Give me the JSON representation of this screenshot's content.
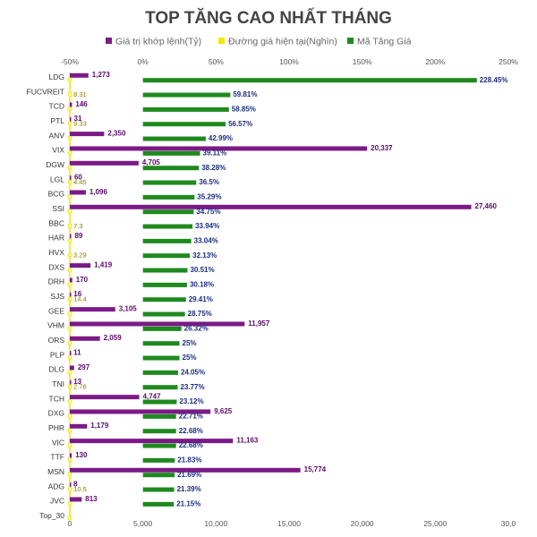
{
  "chart_data": {
    "type": "bar",
    "title": "TOP TĂNG CAO NHẤT THÁNG",
    "legend": {
      "position": "top",
      "entries": [
        {
          "name": "Giá trị khớp lệnh(Tỷ)",
          "color": "#7b1a86"
        },
        {
          "name": "Đường giá hiện tại(Nghìn)",
          "color": "#f2e600"
        },
        {
          "name": "Mã Tăng Giá",
          "color": "#1e8a1e"
        }
      ]
    },
    "categories": [
      "LDG",
      "FUCVREIT",
      "TCD",
      "PTL",
      "ANV",
      "VIX",
      "DGW",
      "LGL",
      "BCG",
      "SSI",
      "BBC",
      "HAR",
      "HVX",
      "DXS",
      "DRH",
      "SJS",
      "GEE",
      "VHM",
      "ORS",
      "PLP",
      "DLG",
      "TNI",
      "TCH",
      "DXG",
      "PHR",
      "VIC",
      "TTF",
      "MSN",
      "ADG",
      "JVC",
      "Top_30"
    ],
    "series": [
      {
        "name": "Mã Tăng Giá",
        "axis": "top",
        "unit": "%",
        "labels": [
          "228.45%",
          "59.81%",
          "58.85%",
          "56.57%",
          "42.99%",
          "39.11%",
          "38.28%",
          "36.5%",
          "35.29%",
          "34.75%",
          "33.94%",
          "33.04%",
          "32.13%",
          "30.51%",
          "30.18%",
          "29.41%",
          "28.75%",
          "26.32%",
          "25%",
          "25%",
          "24.05%",
          "23.77%",
          "23.12%",
          "22.71%",
          "22.68%",
          "22.68%",
          "21.83%",
          "21.69%",
          "21.39%",
          "21.15%",
          ""
        ],
        "values": [
          228.45,
          59.81,
          58.85,
          56.57,
          42.99,
          39.11,
          38.28,
          36.5,
          35.29,
          34.75,
          33.94,
          33.04,
          32.13,
          30.51,
          30.18,
          29.41,
          28.75,
          26.32,
          25,
          25,
          24.05,
          23.77,
          23.12,
          22.71,
          22.68,
          22.68,
          21.83,
          21.69,
          21.39,
          21.15,
          null
        ]
      },
      {
        "name": "Giá trị khớp lệnh(Tỷ)",
        "axis": "bottom",
        "labels": [
          "1,273",
          "",
          "146",
          "31",
          "2,350",
          "20,337",
          "4,705",
          "60",
          "1,096",
          "27,460",
          "",
          "89",
          "",
          "1,419",
          "170",
          "16",
          "3,105",
          "11,957",
          "2,059",
          "11",
          "297",
          "13",
          "4,747",
          "9,625",
          "1,179",
          "11,163",
          "130",
          "15,774",
          "8",
          "813",
          ""
        ],
        "values": [
          1273,
          null,
          146,
          31,
          2350,
          20337,
          4705,
          60,
          1096,
          27460,
          null,
          89,
          null,
          1419,
          170,
          16,
          3105,
          11957,
          2059,
          11,
          297,
          13,
          4747,
          9625,
          1179,
          11163,
          130,
          15774,
          8,
          813,
          null
        ]
      },
      {
        "name": "Đường giá hiện tại(Nghìn)",
        "axis": "bottom",
        "labels": [
          "",
          "8.31",
          "",
          "9.33",
          "",
          "",
          "",
          "4.45",
          "",
          "",
          "7.3",
          "",
          "3.29",
          "",
          "",
          "14.4",
          "",
          "",
          "",
          "",
          "",
          "2.76",
          "",
          "",
          "",
          "",
          "",
          "",
          "10.5",
          "",
          ""
        ],
        "values": [
          null,
          8.31,
          null,
          9.33,
          null,
          null,
          null,
          4.45,
          null,
          null,
          7.3,
          null,
          3.29,
          null,
          null,
          14.4,
          null,
          null,
          null,
          null,
          null,
          2.76,
          null,
          null,
          null,
          null,
          null,
          null,
          10.5,
          null,
          null
        ]
      }
    ],
    "top_axis": {
      "ticks": [
        "-50%",
        "0%",
        "50%",
        "100%",
        "150%",
        "200%",
        "250%"
      ],
      "values": [
        -50,
        0,
        50,
        100,
        150,
        200,
        250
      ],
      "range": [
        -50,
        250
      ]
    },
    "bottom_axis": {
      "ticks": [
        "0",
        "5,000",
        "10,000",
        "15,000",
        "20,000",
        "25,000",
        "30,0"
      ],
      "values": [
        0,
        5000,
        10000,
        15000,
        20000,
        25000,
        30000
      ],
      "range": [
        0,
        30000
      ]
    },
    "grid": false
  }
}
